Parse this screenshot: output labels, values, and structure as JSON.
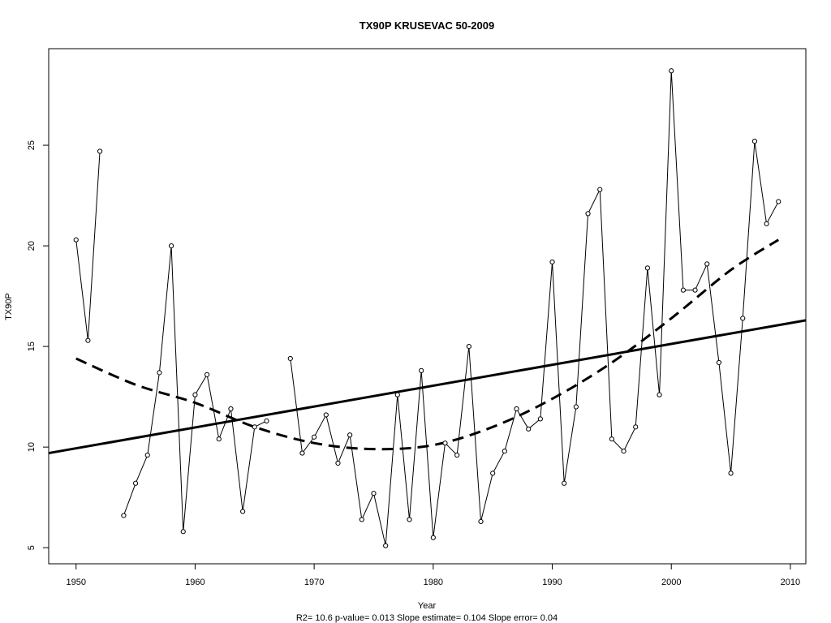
{
  "chart_data": {
    "type": "line",
    "title": "TX90P    KRUSEVAC 50-2009",
    "xlabel": "Year",
    "ylabel": "TX90P",
    "note": "R2= 10.6  p-value= 0.013  Slope estimate= 0.104  Slope error= 0.04",
    "xlim": [
      1947.7,
      2011.3
    ],
    "ylim": [
      4.2,
      29.8
    ],
    "x_ticks": [
      1950,
      1960,
      1970,
      1980,
      1990,
      2000,
      2010
    ],
    "y_ticks": [
      5,
      10,
      15,
      20,
      25
    ],
    "series": [
      {
        "points": [
          [
            1950,
            20.3
          ],
          [
            1951,
            15.3
          ],
          [
            1952,
            24.7
          ],
          [
            1953,
            null
          ],
          [
            1954,
            6.6
          ],
          [
            1955,
            8.2
          ],
          [
            1956,
            9.6
          ],
          [
            1957,
            13.7
          ],
          [
            1958,
            20.0
          ],
          [
            1959,
            5.8
          ],
          [
            1960,
            12.6
          ],
          [
            1961,
            13.6
          ],
          [
            1962,
            10.4
          ],
          [
            1963,
            11.9
          ],
          [
            1964,
            6.8
          ],
          [
            1965,
            11.0
          ],
          [
            1966,
            11.3
          ],
          [
            1967,
            null
          ],
          [
            1968,
            14.4
          ],
          [
            1969,
            9.7
          ],
          [
            1970,
            10.5
          ],
          [
            1971,
            11.6
          ],
          [
            1972,
            9.2
          ],
          [
            1973,
            10.6
          ],
          [
            1974,
            6.4
          ],
          [
            1975,
            7.7
          ],
          [
            1976,
            5.1
          ],
          [
            1977,
            12.6
          ],
          [
            1978,
            6.4
          ],
          [
            1979,
            13.8
          ],
          [
            1980,
            5.5
          ],
          [
            1981,
            10.2
          ],
          [
            1982,
            9.6
          ],
          [
            1983,
            15.0
          ],
          [
            1984,
            6.3
          ],
          [
            1985,
            8.7
          ],
          [
            1986,
            9.8
          ],
          [
            1987,
            11.9
          ],
          [
            1988,
            10.9
          ],
          [
            1989,
            11.4
          ],
          [
            1990,
            19.2
          ],
          [
            1991,
            8.2
          ],
          [
            1992,
            12.0
          ],
          [
            1993,
            21.6
          ],
          [
            1994,
            22.8
          ],
          [
            1995,
            10.4
          ],
          [
            1996,
            9.8
          ],
          [
            1997,
            11.0
          ],
          [
            1998,
            18.9
          ],
          [
            1999,
            12.6
          ],
          [
            2000,
            28.7
          ],
          [
            2001,
            17.8
          ],
          [
            2002,
            17.8
          ],
          [
            2003,
            19.1
          ],
          [
            2004,
            14.2
          ],
          [
            2005,
            8.7
          ],
          [
            2006,
            16.4
          ],
          [
            2007,
            25.2
          ],
          [
            2008,
            21.1
          ],
          [
            2009,
            22.2
          ]
        ]
      }
    ],
    "trend_line": {
      "x": [
        1947.7,
        2011.3
      ],
      "y": [
        9.7,
        16.3
      ]
    },
    "smooth_curve": {
      "x": [
        1950,
        1955,
        1960,
        1965,
        1970,
        1975,
        1980,
        1985,
        1990,
        1995,
        2000,
        2005,
        2009
      ],
      "y": [
        14.4,
        13.1,
        12.2,
        11.0,
        10.2,
        9.9,
        10.1,
        11.0,
        12.4,
        14.2,
        16.4,
        18.8,
        20.3
      ]
    }
  }
}
